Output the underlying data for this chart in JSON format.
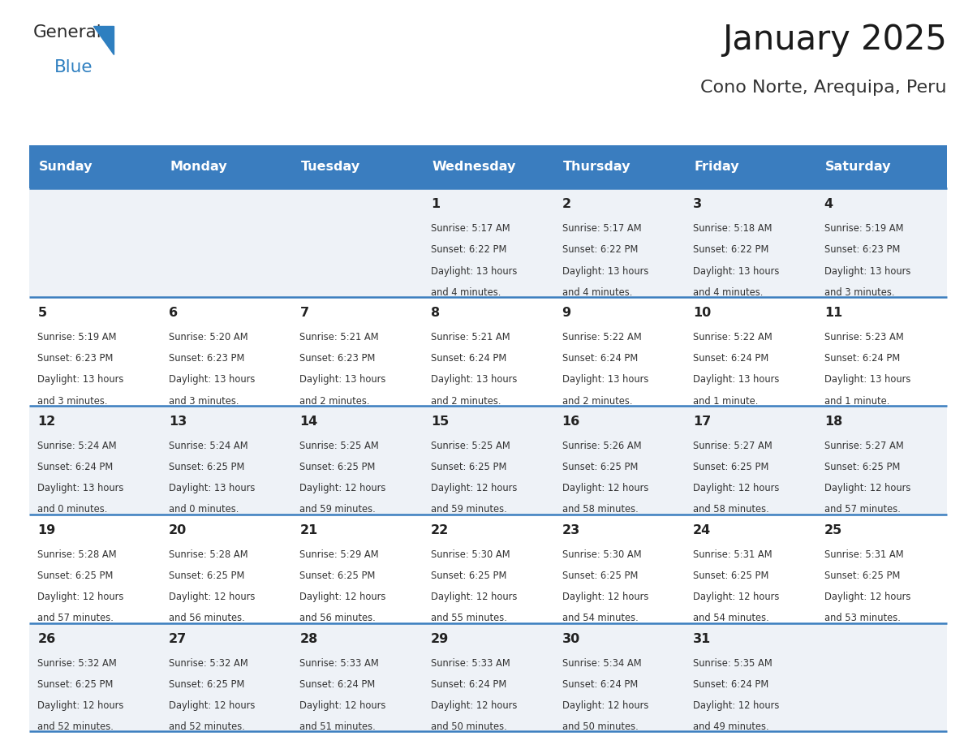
{
  "title": "January 2025",
  "subtitle": "Cono Norte, Arequipa, Peru",
  "days_of_week": [
    "Sunday",
    "Monday",
    "Tuesday",
    "Wednesday",
    "Thursday",
    "Friday",
    "Saturday"
  ],
  "header_bg": "#3a7dbf",
  "header_text": "#ffffff",
  "row_bg_odd": "#eef2f7",
  "row_bg_even": "#ffffff",
  "border_color": "#3a7dbf",
  "day_number_color": "#222222",
  "text_color": "#333333",
  "calendar": [
    [
      {
        "day": "",
        "sunrise": "",
        "sunset": "",
        "daylight": ""
      },
      {
        "day": "",
        "sunrise": "",
        "sunset": "",
        "daylight": ""
      },
      {
        "day": "",
        "sunrise": "",
        "sunset": "",
        "daylight": ""
      },
      {
        "day": "1",
        "sunrise": "5:17 AM",
        "sunset": "6:22 PM",
        "daylight": "13 hours and 4 minutes."
      },
      {
        "day": "2",
        "sunrise": "5:17 AM",
        "sunset": "6:22 PM",
        "daylight": "13 hours and 4 minutes."
      },
      {
        "day": "3",
        "sunrise": "5:18 AM",
        "sunset": "6:22 PM",
        "daylight": "13 hours and 4 minutes."
      },
      {
        "day": "4",
        "sunrise": "5:19 AM",
        "sunset": "6:23 PM",
        "daylight": "13 hours and 3 minutes."
      }
    ],
    [
      {
        "day": "5",
        "sunrise": "5:19 AM",
        "sunset": "6:23 PM",
        "daylight": "13 hours and 3 minutes."
      },
      {
        "day": "6",
        "sunrise": "5:20 AM",
        "sunset": "6:23 PM",
        "daylight": "13 hours and 3 minutes."
      },
      {
        "day": "7",
        "sunrise": "5:21 AM",
        "sunset": "6:23 PM",
        "daylight": "13 hours and 2 minutes."
      },
      {
        "day": "8",
        "sunrise": "5:21 AM",
        "sunset": "6:24 PM",
        "daylight": "13 hours and 2 minutes."
      },
      {
        "day": "9",
        "sunrise": "5:22 AM",
        "sunset": "6:24 PM",
        "daylight": "13 hours and 2 minutes."
      },
      {
        "day": "10",
        "sunrise": "5:22 AM",
        "sunset": "6:24 PM",
        "daylight": "13 hours and 1 minute."
      },
      {
        "day": "11",
        "sunrise": "5:23 AM",
        "sunset": "6:24 PM",
        "daylight": "13 hours and 1 minute."
      }
    ],
    [
      {
        "day": "12",
        "sunrise": "5:24 AM",
        "sunset": "6:24 PM",
        "daylight": "13 hours and 0 minutes."
      },
      {
        "day": "13",
        "sunrise": "5:24 AM",
        "sunset": "6:25 PM",
        "daylight": "13 hours and 0 minutes."
      },
      {
        "day": "14",
        "sunrise": "5:25 AM",
        "sunset": "6:25 PM",
        "daylight": "12 hours and 59 minutes."
      },
      {
        "day": "15",
        "sunrise": "5:25 AM",
        "sunset": "6:25 PM",
        "daylight": "12 hours and 59 minutes."
      },
      {
        "day": "16",
        "sunrise": "5:26 AM",
        "sunset": "6:25 PM",
        "daylight": "12 hours and 58 minutes."
      },
      {
        "day": "17",
        "sunrise": "5:27 AM",
        "sunset": "6:25 PM",
        "daylight": "12 hours and 58 minutes."
      },
      {
        "day": "18",
        "sunrise": "5:27 AM",
        "sunset": "6:25 PM",
        "daylight": "12 hours and 57 minutes."
      }
    ],
    [
      {
        "day": "19",
        "sunrise": "5:28 AM",
        "sunset": "6:25 PM",
        "daylight": "12 hours and 57 minutes."
      },
      {
        "day": "20",
        "sunrise": "5:28 AM",
        "sunset": "6:25 PM",
        "daylight": "12 hours and 56 minutes."
      },
      {
        "day": "21",
        "sunrise": "5:29 AM",
        "sunset": "6:25 PM",
        "daylight": "12 hours and 56 minutes."
      },
      {
        "day": "22",
        "sunrise": "5:30 AM",
        "sunset": "6:25 PM",
        "daylight": "12 hours and 55 minutes."
      },
      {
        "day": "23",
        "sunrise": "5:30 AM",
        "sunset": "6:25 PM",
        "daylight": "12 hours and 54 minutes."
      },
      {
        "day": "24",
        "sunrise": "5:31 AM",
        "sunset": "6:25 PM",
        "daylight": "12 hours and 54 minutes."
      },
      {
        "day": "25",
        "sunrise": "5:31 AM",
        "sunset": "6:25 PM",
        "daylight": "12 hours and 53 minutes."
      }
    ],
    [
      {
        "day": "26",
        "sunrise": "5:32 AM",
        "sunset": "6:25 PM",
        "daylight": "12 hours and 52 minutes."
      },
      {
        "day": "27",
        "sunrise": "5:32 AM",
        "sunset": "6:25 PM",
        "daylight": "12 hours and 52 minutes."
      },
      {
        "day": "28",
        "sunrise": "5:33 AM",
        "sunset": "6:24 PM",
        "daylight": "12 hours and 51 minutes."
      },
      {
        "day": "29",
        "sunrise": "5:33 AM",
        "sunset": "6:24 PM",
        "daylight": "12 hours and 50 minutes."
      },
      {
        "day": "30",
        "sunrise": "5:34 AM",
        "sunset": "6:24 PM",
        "daylight": "12 hours and 50 minutes."
      },
      {
        "day": "31",
        "sunrise": "5:35 AM",
        "sunset": "6:24 PM",
        "daylight": "12 hours and 49 minutes."
      },
      {
        "day": "",
        "sunrise": "",
        "sunset": "",
        "daylight": ""
      }
    ]
  ],
  "fig_width": 11.88,
  "fig_height": 9.18,
  "dpi": 100
}
